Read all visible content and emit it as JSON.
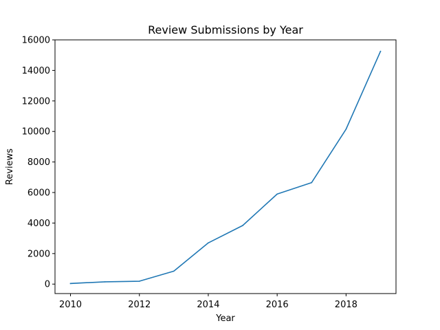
{
  "chart_data": {
    "type": "line",
    "title": "Review Submissions by Year",
    "xlabel": "Year",
    "ylabel": "Reviews",
    "x": [
      2010,
      2011,
      2012,
      2013,
      2014,
      2015,
      2016,
      2017,
      2018,
      2019
    ],
    "series": [
      {
        "values": [
          40,
          150,
          190,
          850,
          2700,
          3840,
          5900,
          6650,
          10150,
          15250
        ],
        "color": "#1f77b4"
      }
    ],
    "xlim": [
      2009.55,
      2019.45
    ],
    "ylim": [
      -620,
      16000
    ],
    "xticks": [
      2010,
      2012,
      2014,
      2016,
      2018
    ],
    "yticks": [
      0,
      2000,
      4000,
      6000,
      8000,
      10000,
      12000,
      14000,
      16000
    ],
    "grid": false,
    "legend": "none"
  }
}
